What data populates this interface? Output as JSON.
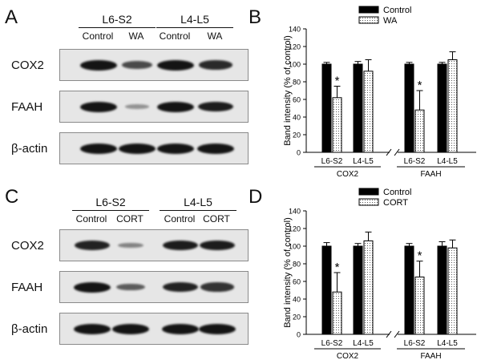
{
  "panels": {
    "A": {
      "letter": "A",
      "groups": [
        "L6-S2",
        "L4-L5"
      ],
      "lanes": [
        "Control",
        "WA",
        "Control",
        "WA"
      ],
      "rows": [
        {
          "label": "COX2",
          "bands": [
            1.0,
            0.65,
            1.0,
            0.85
          ]
        },
        {
          "label": "FAAH",
          "bands": [
            1.0,
            0.2,
            1.0,
            0.95
          ]
        },
        {
          "label": "β-actin",
          "bands": [
            1.0,
            1.0,
            1.0,
            1.0
          ]
        }
      ]
    },
    "C": {
      "letter": "C",
      "groups": [
        "L6-S2",
        "L4-L5"
      ],
      "lanes": [
        "Control",
        "CORT",
        "Control",
        "CORT"
      ],
      "rows": [
        {
          "label": "COX2",
          "bands": [
            0.9,
            0.3,
            0.95,
            0.95
          ]
        },
        {
          "label": "FAAH",
          "bands": [
            1.0,
            0.55,
            0.9,
            0.8
          ]
        },
        {
          "label": "β-actin",
          "bands": [
            1.0,
            1.0,
            1.0,
            1.0
          ]
        }
      ]
    }
  },
  "chart_data": [
    {
      "panel": "B",
      "type": "bar",
      "ylabel": "Band intensity (% of control)",
      "ylim": [
        0,
        140
      ],
      "yticks": [
        0,
        20,
        40,
        60,
        80,
        100,
        120,
        140
      ],
      "legend": {
        "position": "top-center",
        "entries": [
          "Control",
          "WA"
        ]
      },
      "groups": [
        {
          "name": "COX2",
          "categories": [
            "L6-S2",
            "L4-L5"
          ]
        },
        {
          "name": "FAAH",
          "categories": [
            "L6-S2",
            "L4-L5"
          ]
        }
      ],
      "series": [
        {
          "name": "Control",
          "style": "solid",
          "values": [
            100,
            100,
            100,
            100
          ],
          "errors": [
            2,
            3,
            2,
            2
          ]
        },
        {
          "name": "WA",
          "style": "dotted",
          "values": [
            62,
            92,
            48,
            105
          ],
          "errors": [
            13,
            13,
            22,
            9
          ]
        }
      ],
      "significance": [
        {
          "series": "WA",
          "category_index": 0,
          "mark": "*"
        },
        {
          "series": "WA",
          "category_index": 2,
          "mark": "*"
        }
      ],
      "axis_break": true
    },
    {
      "panel": "D",
      "type": "bar",
      "ylabel": "Band intensity (% of control)",
      "ylim": [
        0,
        140
      ],
      "yticks": [
        0,
        20,
        40,
        60,
        80,
        100,
        120,
        140
      ],
      "legend": {
        "position": "top-center",
        "entries": [
          "Control",
          "CORT"
        ]
      },
      "groups": [
        {
          "name": "COX2",
          "categories": [
            "L6-S2",
            "L4-L5"
          ]
        },
        {
          "name": "FAAH",
          "categories": [
            "L6-S2",
            "L4-L5"
          ]
        }
      ],
      "series": [
        {
          "name": "Control",
          "style": "solid",
          "values": [
            100,
            100,
            100,
            100
          ],
          "errors": [
            4,
            3,
            3,
            5
          ]
        },
        {
          "name": "CORT",
          "style": "dotted",
          "values": [
            48,
            106,
            65,
            98
          ],
          "errors": [
            22,
            10,
            18,
            9
          ]
        }
      ],
      "significance": [
        {
          "series": "CORT",
          "category_index": 0,
          "mark": "*"
        },
        {
          "series": "CORT",
          "category_index": 2,
          "mark": "*"
        }
      ],
      "axis_break": true
    }
  ]
}
